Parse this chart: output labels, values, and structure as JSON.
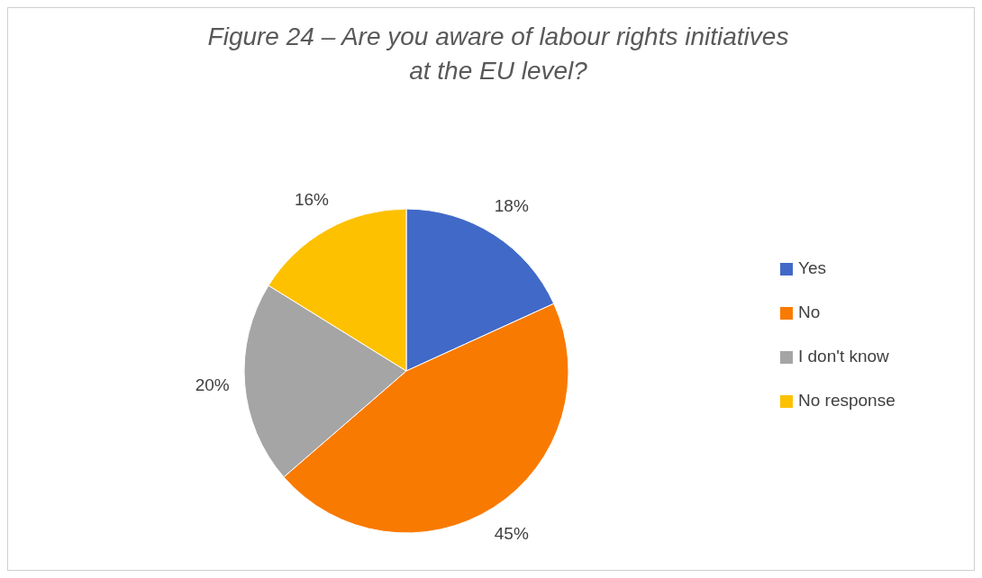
{
  "chart_data": {
    "type": "pie",
    "title": "Figure 24 – Are you aware of labour rights initiatives at the EU level?",
    "categories": [
      "Yes",
      "No",
      "I don't know",
      "No response"
    ],
    "values": [
      18,
      45,
      20,
      16
    ],
    "colors": [
      "#4169c8",
      "#f97a00",
      "#a5a5a5",
      "#fdc100"
    ],
    "value_labels": [
      "18%",
      "45%",
      "20%",
      "16%"
    ],
    "legend": "right"
  }
}
